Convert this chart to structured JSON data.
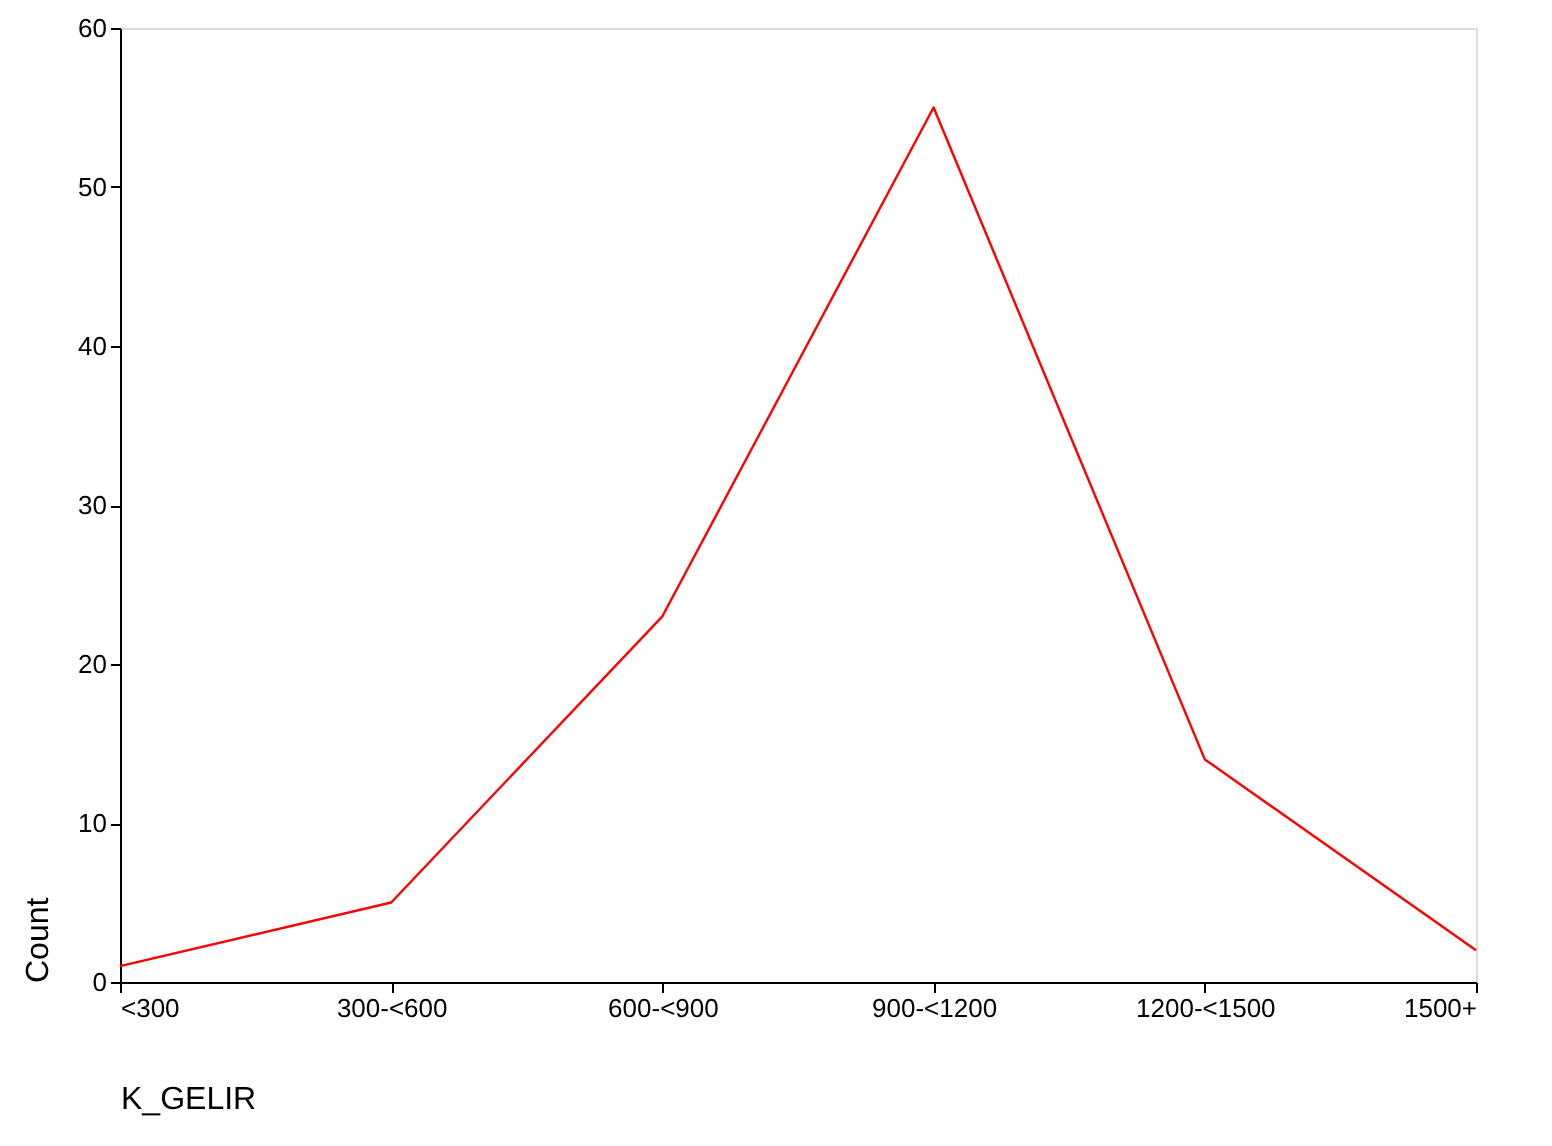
{
  "chart_data": {
    "type": "line",
    "xlabel": "K_GELIR",
    "ylabel": "Count",
    "categories": [
      "<300",
      "300-<600",
      "600-<900",
      "900-<1200",
      "1200-<1500",
      "1500+"
    ],
    "series": [
      {
        "color": "#ff0000",
        "values": [
          1,
          5,
          23,
          55,
          14,
          2
        ]
      }
    ],
    "ylim": [
      0,
      60
    ],
    "yticks": [
      0,
      10,
      20,
      30,
      40,
      50,
      60
    ],
    "grid": false,
    "marker": "none",
    "line_style": "solid"
  }
}
